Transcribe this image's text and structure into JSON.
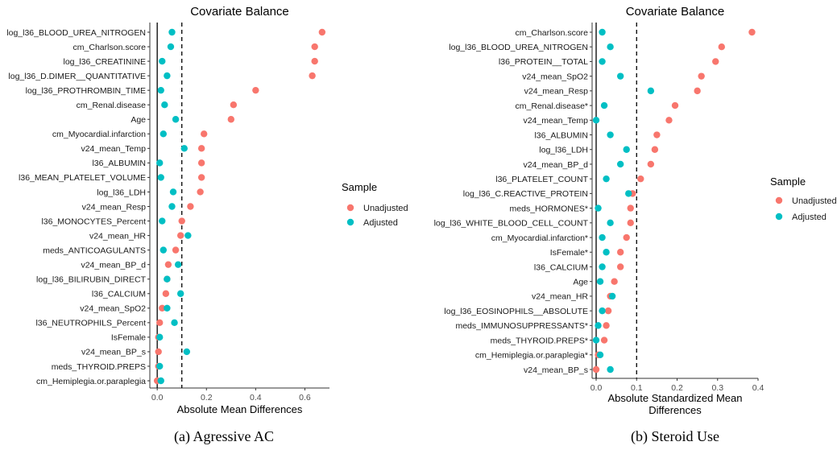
{
  "colors": {
    "unadjusted": "#F8766D",
    "adjusted": "#00BFC4"
  },
  "chart_data": [
    {
      "type": "scatter",
      "title": "Covariate Balance",
      "xlabel": "Absolute Mean Differences",
      "xlim": [
        -0.03,
        0.7
      ],
      "x_ticks": [
        0.0,
        0.2,
        0.4,
        0.6
      ],
      "x_tick_labels": [
        "0.0",
        "0.2",
        "0.4",
        "0.6"
      ],
      "threshold": 0.1,
      "grid": false,
      "legend": {
        "title": "Sample",
        "placement": "right",
        "items": [
          "Unadjusted",
          "Adjusted"
        ]
      },
      "caption": "(a) Agressive AC",
      "categories": [
        "log_l36_BLOOD_UREA_NITROGEN",
        "cm_Charlson.score",
        "log_l36_CREATININE",
        "log_l36_D.DIMER__QUANTITATIVE",
        "log_l36_PROTHROMBIN_TIME",
        "cm_Renal.disease",
        "Age",
        "cm_Myocardial.infarction",
        "v24_mean_Temp",
        "l36_ALBUMIN",
        "l36_MEAN_PLATELET_VOLUME",
        "log_l36_LDH",
        "v24_mean_Resp",
        "l36_MONOCYTES_Percent",
        "v24_mean_HR",
        "meds_ANTICOAGULANTS",
        "v24_mean_BP_d",
        "log_l36_BILIRUBIN_DIRECT",
        "l36_CALCIUM",
        "v24_mean_SpO2",
        "l36_NEUTROPHILS_Percent",
        "IsFemale",
        "v24_mean_BP_s",
        "meds_THYROID.PREPS",
        "cm_Hemiplegia.or.paraplegia"
      ],
      "series": [
        {
          "name": "Unadjusted",
          "values": [
            0.67,
            0.64,
            0.64,
            0.63,
            0.4,
            0.31,
            0.3,
            0.19,
            0.18,
            0.18,
            0.18,
            0.175,
            0.135,
            0.1,
            0.095,
            0.075,
            0.045,
            0.04,
            0.035,
            0.02,
            0.01,
            0.005,
            0.005,
            0.005,
            0.0
          ]
        },
        {
          "name": "Adjusted",
          "values": [
            0.06,
            0.055,
            0.02,
            0.04,
            0.015,
            0.03,
            0.075,
            0.025,
            0.11,
            0.01,
            0.015,
            0.065,
            0.06,
            0.02,
            0.125,
            0.025,
            0.085,
            0.04,
            0.095,
            0.04,
            0.07,
            0.01,
            0.12,
            0.01,
            0.015
          ]
        }
      ]
    },
    {
      "type": "scatter",
      "title": "Covariate Balance",
      "xlabel": "Absolute Standardized Mean\nDifferences",
      "xlim": [
        -0.01,
        0.4
      ],
      "x_ticks": [
        0.0,
        0.1,
        0.2,
        0.3,
        0.4
      ],
      "x_tick_labels": [
        "0.0",
        "0.1",
        "0.2",
        "0.3",
        "0.4"
      ],
      "threshold": 0.1,
      "grid": false,
      "legend": {
        "title": "Sample",
        "placement": "right",
        "items": [
          "Unadjusted",
          "Adjusted"
        ]
      },
      "caption": "(b) Steroid Use",
      "categories": [
        "cm_Charlson.score",
        "log_l36_BLOOD_UREA_NITROGEN",
        "l36_PROTEIN__TOTAL",
        "v24_mean_SpO2",
        "v24_mean_Resp",
        "cm_Renal.disease*",
        "v24_mean_Temp",
        "l36_ALBUMIN",
        "log_l36_LDH",
        "v24_mean_BP_d",
        "l36_PLATELET_COUNT",
        "log_l36_C.REACTIVE_PROTEIN",
        "meds_HORMONES*",
        "log_l36_WHITE_BLOOD_CELL_COUNT",
        "cm_Myocardial.infarction*",
        "IsFemale*",
        "l36_CALCIUM",
        "Age",
        "v24_mean_HR",
        "log_l36_EOSINOPHILS__ABSOLUTE",
        "meds_IMMUNOSUPPRESSANTS*",
        "meds_THYROID.PREPS*",
        "cm_Hemiplegia.or.paraplegia*",
        "v24_mean_BP_s"
      ],
      "series": [
        {
          "name": "Unadjusted",
          "values": [
            0.385,
            0.31,
            0.295,
            0.26,
            0.25,
            0.195,
            0.18,
            0.15,
            0.145,
            0.135,
            0.11,
            0.09,
            0.085,
            0.085,
            0.075,
            0.06,
            0.06,
            0.045,
            0.035,
            0.03,
            0.025,
            0.02,
            0.005,
            0.0
          ]
        },
        {
          "name": "Adjusted",
          "values": [
            0.015,
            0.035,
            0.015,
            0.06,
            0.135,
            0.02,
            0.0,
            0.035,
            0.075,
            0.06,
            0.025,
            0.08,
            0.005,
            0.035,
            0.015,
            0.025,
            0.015,
            0.01,
            0.04,
            0.015,
            0.005,
            0.0,
            0.01,
            0.035
          ]
        }
      ]
    }
  ]
}
